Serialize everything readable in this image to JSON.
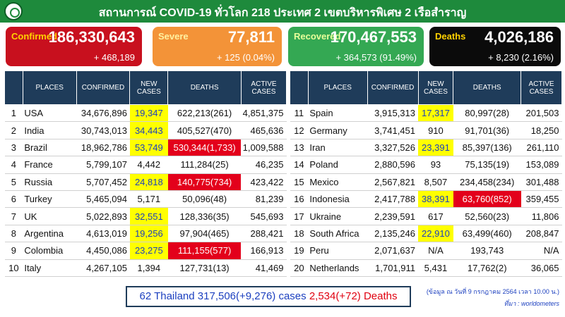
{
  "header": {
    "title": "สถานการณ์ COVID-19 ทั่วโลก 218 ประเทศ 2 เขตบริหารพิเศษ 2 เรือสำราญ"
  },
  "cards": {
    "confirmed": {
      "label": "Confirmed",
      "value": "186,330,643",
      "change": "+ 468,189"
    },
    "severe": {
      "label": "Severe",
      "value": "77,811",
      "change": "+ 125 (0.04%)"
    },
    "recovered": {
      "label": "Recovered",
      "value": "170,467,553",
      "change": "+ 364,573 (91.49%)"
    },
    "deaths": {
      "label": "Deaths",
      "value": "4,026,186",
      "change": "+ 8,230 (2.16%)"
    }
  },
  "table_headers": {
    "places": "PLACES",
    "confirmed": "CONFIRMED",
    "new_cases_1": "NEW",
    "new_cases_2": "CASES",
    "deaths": "DEATHS",
    "active_1": "ACTIVE",
    "active_2": "CASES"
  },
  "left_rows": [
    {
      "rank": "1",
      "place": "USA",
      "confirmed": "34,676,896",
      "new": "19,347",
      "deaths": "622,213(261)",
      "active": "4,851,375",
      "new_hl": true,
      "death_hl": false
    },
    {
      "rank": "2",
      "place": "India",
      "confirmed": "30,743,013",
      "new": "34,443",
      "deaths": "405,527(470)",
      "active": "465,636",
      "new_hl": true,
      "death_hl": false
    },
    {
      "rank": "3",
      "place": "Brazil",
      "confirmed": "18,962,786",
      "new": "53,749",
      "deaths": "530,344(1,733)",
      "active": "1,009,588",
      "new_hl": true,
      "death_hl": true
    },
    {
      "rank": "4",
      "place": "France",
      "confirmed": "5,799,107",
      "new": "4,442",
      "deaths": "111,284(25)",
      "active": "46,235",
      "new_hl": false,
      "death_hl": false
    },
    {
      "rank": "5",
      "place": "Russia",
      "confirmed": "5,707,452",
      "new": "24,818",
      "deaths": "140,775(734)",
      "active": "423,422",
      "new_hl": true,
      "death_hl": true
    },
    {
      "rank": "6",
      "place": "Turkey",
      "confirmed": "5,465,094",
      "new": "5,171",
      "deaths": "50,096(48)",
      "active": "81,239",
      "new_hl": false,
      "death_hl": false
    },
    {
      "rank": "7",
      "place": "UK",
      "confirmed": "5,022,893",
      "new": "32,551",
      "deaths": "128,336(35)",
      "active": "545,693",
      "new_hl": true,
      "death_hl": false
    },
    {
      "rank": "8",
      "place": "Argentina",
      "confirmed": "4,613,019",
      "new": "19,256",
      "deaths": "97,904(465)",
      "active": "288,421",
      "new_hl": true,
      "death_hl": false
    },
    {
      "rank": "9",
      "place": "Colombia",
      "confirmed": "4,450,086",
      "new": "23,275",
      "deaths": "111,155(577)",
      "active": "166,913",
      "new_hl": true,
      "death_hl": true
    },
    {
      "rank": "10",
      "place": "Italy",
      "confirmed": "4,267,105",
      "new": "1,394",
      "deaths": "127,731(13)",
      "active": "41,469",
      "new_hl": false,
      "death_hl": false
    }
  ],
  "right_rows": [
    {
      "rank": "11",
      "place": "Spain",
      "confirmed": "3,915,313",
      "new": "17,317",
      "deaths": "80,997(28)",
      "active": "201,503",
      "new_hl": true,
      "death_hl": false
    },
    {
      "rank": "12",
      "place": "Germany",
      "confirmed": "3,741,451",
      "new": "910",
      "deaths": "91,701(36)",
      "active": "18,250",
      "new_hl": false,
      "death_hl": false
    },
    {
      "rank": "13",
      "place": "Iran",
      "confirmed": "3,327,526",
      "new": "23,391",
      "deaths": "85,397(136)",
      "active": "261,110",
      "new_hl": true,
      "death_hl": false
    },
    {
      "rank": "14",
      "place": "Poland",
      "confirmed": "2,880,596",
      "new": "93",
      "deaths": "75,135(19)",
      "active": "153,089",
      "new_hl": false,
      "death_hl": false
    },
    {
      "rank": "15",
      "place": "Mexico",
      "confirmed": "2,567,821",
      "new": "8,507",
      "deaths": "234,458(234)",
      "active": "301,488",
      "new_hl": false,
      "death_hl": false
    },
    {
      "rank": "16",
      "place": "Indonesia",
      "confirmed": "2,417,788",
      "new": "38,391",
      "deaths": "63,760(852)",
      "active": "359,455",
      "new_hl": true,
      "death_hl": true
    },
    {
      "rank": "17",
      "place": "Ukraine",
      "confirmed": "2,239,591",
      "new": "617",
      "deaths": "52,560(23)",
      "active": "11,806",
      "new_hl": false,
      "death_hl": false
    },
    {
      "rank": "18",
      "place": "South Africa",
      "confirmed": "2,135,246",
      "new": "22,910",
      "deaths": "63,499(460)",
      "active": "208,847",
      "new_hl": true,
      "death_hl": false
    },
    {
      "rank": "19",
      "place": "Peru",
      "confirmed": "2,071,637",
      "new": "N/A",
      "deaths": "193,743",
      "active": "N/A",
      "new_hl": false,
      "death_hl": false
    },
    {
      "rank": "20",
      "place": "Netherlands",
      "confirmed": "1,701,911",
      "new": "5,431",
      "deaths": "17,762(2)",
      "active": "36,065",
      "new_hl": false,
      "death_hl": false
    }
  ],
  "thailand": {
    "text": "62 Thailand 317,506(+9,276) cases",
    "deaths": "2,534(+72) Deaths"
  },
  "footnote": {
    "date": "(ข้อมูล ณ วันที่ 9 กรกฎาคม 2564 เวลา 10.00 น.)",
    "source": "ที่มา : worldometers"
  },
  "colors": {
    "header_green": "#1e8a3c",
    "confirmed_red": "#c8101e",
    "severe_orange": "#f39338",
    "recovered_green": "#34a853",
    "deaths_black": "#0b0b0b",
    "table_header_navy": "#1f3c5a",
    "highlight_yellow": "#ffff00",
    "highlight_red": "#e3001b"
  }
}
